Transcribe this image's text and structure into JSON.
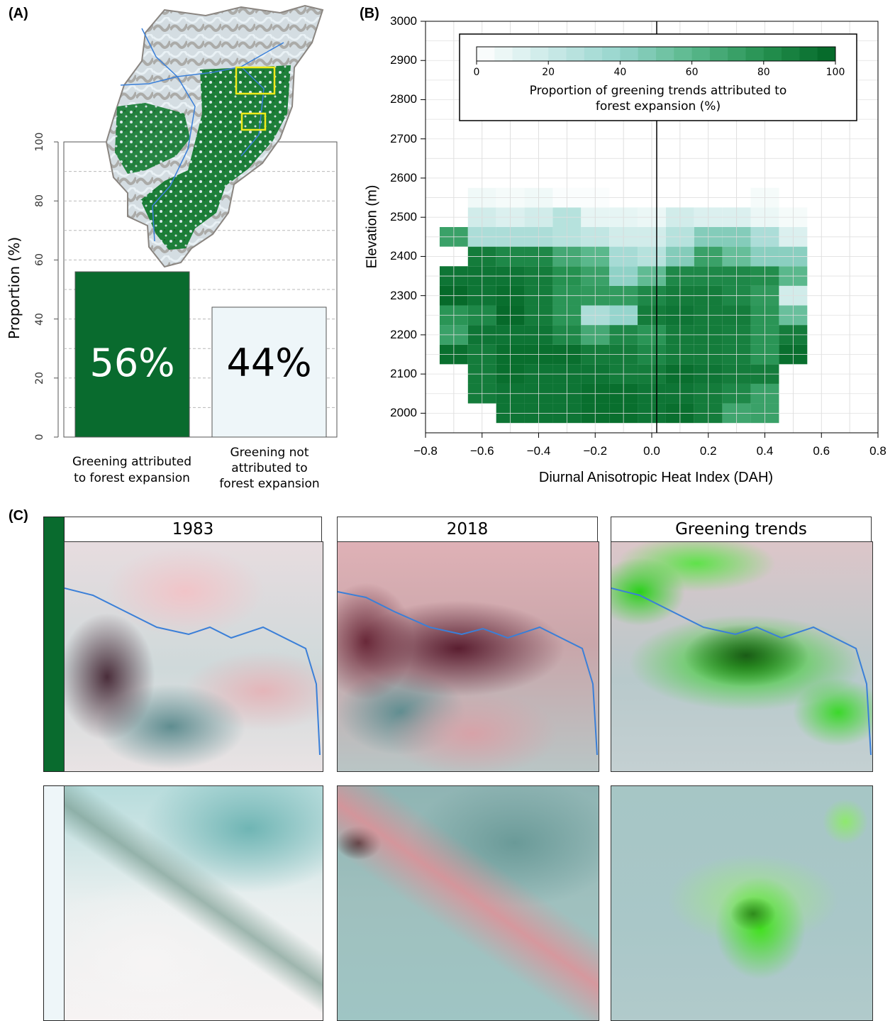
{
  "panels": {
    "a": "(A)",
    "b": "(B)",
    "c": "(C)"
  },
  "chart_data": [
    {
      "type": "bar",
      "panel": "A",
      "categories": [
        "Greening attributed\nto forest expansion",
        "Greening not\nattributed to\nforest expansion"
      ],
      "category_lines": [
        [
          "Greening attributed",
          "to forest expansion"
        ],
        [
          "Greening not",
          "attributed to",
          "forest expansion"
        ]
      ],
      "values": [
        56,
        44
      ],
      "bar_labels": [
        "56%",
        "44%"
      ],
      "ylabel": "Proportion (%)",
      "ylim": [
        0,
        100
      ],
      "yticks": [
        "0",
        "20",
        "40",
        "60",
        "80",
        "100"
      ],
      "grid": "horizontal dashed every 10",
      "colors": {
        "attributed": "#096b2e",
        "not_attributed": "#eef6f9"
      }
    },
    {
      "type": "heatmap",
      "panel": "B",
      "xlabel": "Diurnal Anisotropic Heat Index (DAH)",
      "ylabel": "Elevation (m)",
      "xlim": [
        -0.8,
        0.8
      ],
      "ylim": [
        1950,
        3000
      ],
      "xticks": [
        "−0.8",
        "−0.6",
        "−0.4",
        "−0.2",
        "0.0",
        "0.2",
        "0.4",
        "0.6",
        "0.8"
      ],
      "yticks": [
        "2000",
        "2100",
        "2200",
        "2300",
        "2400",
        "2500",
        "2600",
        "2700",
        "2800",
        "2900",
        "3000"
      ],
      "colorbar": {
        "label_lines": [
          "Proportion of greening trends attributed to",
          "forest expansion (%)"
        ],
        "ticks": [
          "0",
          "20",
          "40",
          "60",
          "80",
          "100"
        ],
        "range": [
          0,
          100
        ]
      },
      "x_bin_centers": [
        -0.7,
        -0.6,
        -0.5,
        -0.4,
        -0.3,
        -0.2,
        -0.1,
        0.0,
        0.1,
        0.2,
        0.3,
        0.4,
        0.5,
        0.6
      ],
      "y_bin_centers": [
        2000,
        2050,
        2100,
        2150,
        2200,
        2250,
        2300,
        2350,
        2400,
        2450,
        2500,
        2550
      ],
      "values": [
        [
          null,
          null,
          93,
          93,
          93,
          96,
          96,
          93,
          96,
          90,
          70,
          72,
          null,
          null
        ],
        [
          null,
          90,
          93,
          93,
          93,
          96,
          96,
          93,
          93,
          90,
          84,
          72,
          null,
          null
        ],
        [
          null,
          90,
          96,
          93,
          93,
          93,
          90,
          90,
          96,
          93,
          90,
          90,
          null,
          null
        ],
        [
          96,
          90,
          96,
          96,
          96,
          90,
          90,
          84,
          90,
          90,
          88,
          78,
          96,
          null
        ],
        [
          72,
          93,
          93,
          93,
          84,
          68,
          84,
          78,
          90,
          90,
          88,
          78,
          90,
          null
        ],
        [
          78,
          84,
          98,
          90,
          78,
          32,
          40,
          90,
          93,
          90,
          90,
          78,
          55,
          null
        ],
        [
          98,
          93,
          96,
          90,
          78,
          76,
          75,
          84,
          90,
          90,
          84,
          76,
          18,
          null
        ],
        [
          93,
          93,
          93,
          90,
          80,
          72,
          42,
          58,
          84,
          84,
          84,
          82,
          60,
          null
        ],
        [
          null,
          90,
          84,
          84,
          68,
          60,
          34,
          28,
          46,
          72,
          56,
          44,
          44,
          null
        ],
        [
          72,
          32,
          32,
          32,
          28,
          24,
          18,
          18,
          28,
          46,
          46,
          32,
          14,
          null
        ],
        [
          null,
          18,
          14,
          18,
          28,
          10,
          10,
          8,
          18,
          14,
          14,
          8,
          4,
          null
        ],
        [
          null,
          6,
          4,
          6,
          2,
          2,
          null,
          null,
          null,
          null,
          null,
          4,
          null,
          null
        ]
      ]
    }
  ],
  "panel_c": {
    "headers": [
      "1983",
      "2018",
      "Greening trends"
    ]
  }
}
